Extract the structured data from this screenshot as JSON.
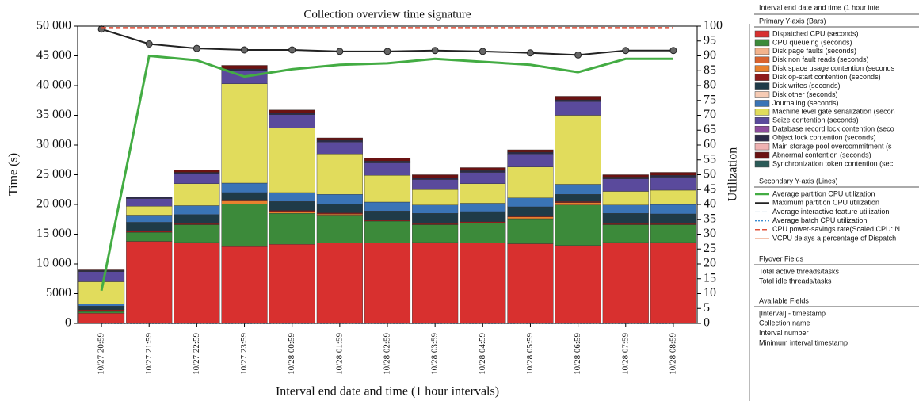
{
  "chart_data": {
    "type": "stacked-bar-line",
    "title": "Collection overview time signature",
    "x_label": "Interval end date and time (1 hour intervals)",
    "y_label": "Time (s)",
    "y2_label": "Utilization",
    "categories": [
      "10/27 20:59",
      "10/27 21:59",
      "10/27 22:59",
      "10/27 23:59",
      "10/28 00:59",
      "10/28 01:59",
      "10/28 02:59",
      "10/28 03:59",
      "10/28 04:59",
      "10/28 05:59",
      "10/28 06:59",
      "10/28 07:59",
      "10/28 08:59"
    ],
    "ylim": [
      0,
      50000
    ],
    "yticks": [
      0,
      5000,
      {
        "value": 10000,
        "label": "10 000"
      },
      {
        "value": 15000,
        "label": "15 000"
      },
      {
        "value": 20000,
        "label": "20 000"
      },
      {
        "value": 25000,
        "label": "25 000"
      },
      {
        "value": 30000,
        "label": "30 000"
      },
      {
        "value": 35000,
        "label": "35 000"
      },
      {
        "value": 40000,
        "label": "40 000"
      },
      {
        "value": 45000,
        "label": "45 000"
      },
      {
        "value": 50000,
        "label": "50 000"
      }
    ],
    "y2lim": [
      0,
      100
    ],
    "y2ticks": [
      0,
      5,
      10,
      15,
      20,
      25,
      30,
      35,
      40,
      45,
      50,
      55,
      60,
      65,
      70,
      75,
      80,
      85,
      90,
      95,
      100
    ],
    "series": [
      {
        "name": "Dispatched CPU (seconds)",
        "color": "#d8302f",
        "values": [
          1700,
          13800,
          13600,
          12900,
          13300,
          13500,
          13500,
          13600,
          13500,
          13400,
          13100,
          13600,
          13600
        ]
      },
      {
        "name": "CPU queueing (seconds)",
        "color": "#3c8a3a",
        "values": [
          300,
          1500,
          3000,
          7200,
          5200,
          4700,
          3700,
          3000,
          3400,
          4200,
          6800,
          3000,
          3000
        ]
      },
      {
        "name": "Disk page faults (seconds)",
        "color": "#f3b38c",
        "values": [
          0,
          0,
          0,
          0,
          0,
          0,
          0,
          0,
          0,
          0,
          0,
          0,
          0
        ]
      },
      {
        "name": "Disk non fault reads (seconds)",
        "color": "#d9632f",
        "values": [
          0,
          0,
          0,
          0,
          0,
          0,
          0,
          0,
          0,
          0,
          0,
          0,
          0
        ]
      },
      {
        "name": "Disk space usage contention (seconds",
        "color": "#e8812f",
        "values": [
          100,
          0,
          0,
          500,
          300,
          200,
          0,
          0,
          0,
          300,
          400,
          0,
          0
        ]
      },
      {
        "name": "Disk op-start contention (seconds)",
        "color": "#8e1c1c",
        "values": [
          200,
          200,
          200,
          200,
          200,
          200,
          200,
          200,
          200,
          200,
          200,
          200,
          200
        ]
      },
      {
        "name": "Disk writes (seconds)",
        "color": "#1f3b48",
        "values": [
          600,
          1500,
          1500,
          1200,
          1500,
          1500,
          1500,
          1700,
          1700,
          1500,
          1200,
          1700,
          1600
        ]
      },
      {
        "name": "Disk other (seconds)",
        "color": "#f6cbb4",
        "values": [
          0,
          0,
          0,
          0,
          0,
          0,
          0,
          0,
          0,
          0,
          0,
          0,
          0
        ]
      },
      {
        "name": "Journaling (seconds)",
        "color": "#3a74b6",
        "values": [
          400,
          1200,
          1500,
          1600,
          1500,
          1600,
          1500,
          1400,
          1400,
          1500,
          1700,
          1400,
          1600
        ]
      },
      {
        "name": "Machine level gate serialization (secon",
        "color": "#e1dc5c",
        "values": [
          3700,
          1500,
          3700,
          16700,
          10900,
          6800,
          4500,
          2600,
          3300,
          5200,
          11600,
          2300,
          2400
        ]
      },
      {
        "name": "Seize contention (seconds)",
        "color": "#5a4a9c",
        "values": [
          1700,
          1300,
          1600,
          2200,
          2200,
          2000,
          2100,
          1700,
          1900,
          2200,
          2300,
          2100,
          2200
        ]
      },
      {
        "name": "Database record lock contention (seco",
        "color": "#8d4c9d",
        "values": [
          0,
          0,
          0,
          0,
          0,
          0,
          0,
          0,
          0,
          0,
          0,
          0,
          0
        ]
      },
      {
        "name": "Object lock contention (seconds)",
        "color": "#2b2a48",
        "values": [
          200,
          300,
          300,
          300,
          300,
          300,
          300,
          300,
          300,
          300,
          300,
          300,
          300
        ]
      },
      {
        "name": "Main storage pool overcommitment (s",
        "color": "#efb2b2",
        "values": [
          0,
          0,
          0,
          0,
          0,
          0,
          0,
          0,
          0,
          0,
          0,
          0,
          0
        ]
      },
      {
        "name": "Abnormal contention (seconds)",
        "color": "#6a1212",
        "values": [
          100,
          0,
          400,
          600,
          500,
          400,
          500,
          500,
          500,
          400,
          600,
          400,
          500
        ]
      },
      {
        "name": "Synchronization token contention (sec",
        "color": "#2b5b58",
        "values": [
          0,
          0,
          0,
          0,
          0,
          0,
          0,
          0,
          0,
          0,
          0,
          0,
          0
        ]
      },
      {
        "name": "Average partition CPU utilization",
        "color": "#43ac43",
        "axis": "y2",
        "style": "solid",
        "width": 3,
        "values": [
          11,
          90,
          88.5,
          83,
          85.5,
          87,
          87.5,
          89,
          88,
          87,
          84.5,
          89,
          89
        ]
      },
      {
        "name": "Maximum partition CPU utilization",
        "color": "#222222",
        "axis": "y2",
        "style": "solid",
        "width": 2,
        "markers": true,
        "values": [
          99,
          94,
          92.5,
          92,
          92,
          91.5,
          91.5,
          91.8,
          91.5,
          91,
          90.3,
          91.8,
          91.8
        ]
      },
      {
        "name": "Average interactive feature utilization",
        "color": "#9db6cf",
        "axis": "y2",
        "style": "dashed",
        "width": 1,
        "values": [
          0,
          0,
          0,
          0,
          0,
          0,
          0,
          0,
          0,
          0,
          0,
          0,
          0
        ]
      },
      {
        "name": "Average batch CPU utilization",
        "color": "#3a8bd0",
        "axis": "y2",
        "style": "dotted",
        "width": 1.5,
        "values": [
          0,
          0,
          0,
          0,
          0,
          0,
          0,
          0,
          0,
          0,
          0,
          0,
          0
        ]
      },
      {
        "name": "CPU power-savings rate(Scaled CPU: N",
        "color": "#e0503a",
        "axis": "y2",
        "style": "dashed",
        "width": 1.5,
        "values": [
          99.5,
          99.5,
          99.5,
          99.5,
          99.5,
          99.5,
          99.5,
          99.5,
          99.5,
          99.5,
          99.5,
          99.5,
          99.5
        ]
      },
      {
        "name": "VCPU delays a percentage of Dispatch",
        "color": "#e8845a",
        "axis": "y2",
        "style": "solid",
        "width": 1,
        "values": [
          null,
          null,
          null,
          null,
          null,
          null,
          null,
          null,
          null,
          null,
          null,
          null,
          null
        ]
      }
    ]
  },
  "legend_panel": {
    "header": "Interval end date and time (1 hour inte",
    "primary_heading": "Primary Y-axis (Bars)",
    "secondary_heading": "Secondary Y-axis (Lines)",
    "flyover": {
      "heading": "Flyover Fields",
      "items": [
        "Total active threads/tasks",
        "Total idle threads/tasks"
      ]
    },
    "available": {
      "heading": "Available Fields",
      "items": [
        "[Interval] - timestamp",
        "Collection name",
        "Interval number",
        "Minimum interval timestamp"
      ]
    }
  }
}
